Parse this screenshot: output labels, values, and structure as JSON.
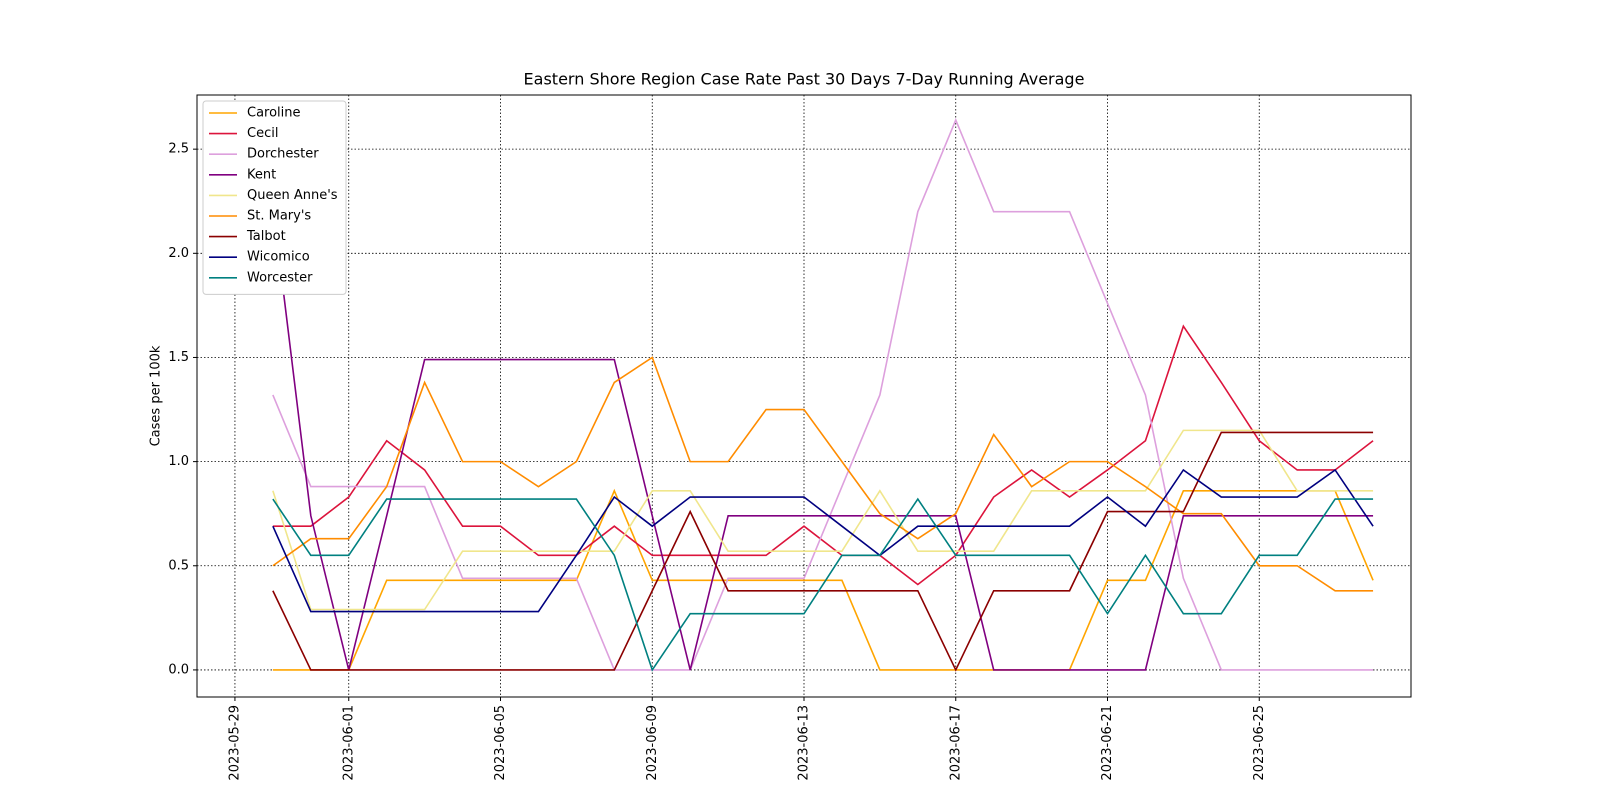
{
  "chart_data": {
    "type": "line",
    "title": "Eastern Shore Region Case Rate  Past 30 Days 7-Day Running Average",
    "y_label": "Cases per 100k",
    "x": [
      "2023-05-30",
      "2023-05-31",
      "2023-06-01",
      "2023-06-02",
      "2023-06-03",
      "2023-06-04",
      "2023-06-05",
      "2023-06-06",
      "2023-06-07",
      "2023-06-08",
      "2023-06-09",
      "2023-06-10",
      "2023-06-11",
      "2023-06-12",
      "2023-06-13",
      "2023-06-14",
      "2023-06-15",
      "2023-06-16",
      "2023-06-17",
      "2023-06-18",
      "2023-06-19",
      "2023-06-20",
      "2023-06-21",
      "2023-06-22",
      "2023-06-23",
      "2023-06-24",
      "2023-06-25",
      "2023-06-26",
      "2023-06-27",
      "2023-06-28"
    ],
    "xlim": [
      "2023-05-28",
      "2023-06-29"
    ],
    "xticks": [
      "2023-05-29",
      "2023-06-01",
      "2023-06-05",
      "2023-06-09",
      "2023-06-13",
      "2023-06-17",
      "2023-06-21",
      "2023-06-25"
    ],
    "ylim": [
      -0.13,
      2.76
    ],
    "yticks": [
      {
        "value": 0,
        "label": "0.0"
      },
      {
        "value": 0.5,
        "label": "0.5"
      },
      {
        "value": 1,
        "label": "1.0"
      },
      {
        "value": 1.5,
        "label": "1.5"
      },
      {
        "value": 2,
        "label": "2.0"
      },
      {
        "value": 2.5,
        "label": "2.5"
      }
    ],
    "grid": true,
    "legend": "upper-left",
    "series": [
      {
        "name": "Caroline",
        "color": "#ffa500",
        "values": [
          0,
          0,
          0,
          0.43,
          0.43,
          0.43,
          0.43,
          0.43,
          0.43,
          0.86,
          0.43,
          0.43,
          0.43,
          0.43,
          0.43,
          0.43,
          0,
          0,
          0,
          0,
          0,
          0,
          0.43,
          0.43,
          0.86,
          0.86,
          0.86,
          0.86,
          0.86,
          0.43
        ]
      },
      {
        "name": "Cecil",
        "color": "#dc143c",
        "values": [
          0.69,
          0.69,
          0.83,
          1.1,
          0.96,
          0.69,
          0.69,
          0.55,
          0.55,
          0.69,
          0.55,
          0.55,
          0.55,
          0.55,
          0.69,
          0.55,
          0.55,
          0.41,
          0.55,
          0.83,
          0.96,
          0.83,
          0.96,
          1.1,
          1.65,
          1.38,
          1.1,
          0.96,
          0.96,
          1.1
        ]
      },
      {
        "name": "Dorchester",
        "color": "#dda0dd",
        "values": [
          1.32,
          0.88,
          0.88,
          0.88,
          0.88,
          0.44,
          0.44,
          0.44,
          0.44,
          0,
          0,
          0,
          0.44,
          0.44,
          0.44,
          0.88,
          1.32,
          2.2,
          2.64,
          2.2,
          2.2,
          2.2,
          1.76,
          1.32,
          0.44,
          0,
          0,
          0,
          0,
          0
        ]
      },
      {
        "name": "Kent",
        "color": "#800080",
        "values": [
          2.23,
          0.74,
          0,
          0.74,
          1.49,
          1.49,
          1.49,
          1.49,
          1.49,
          1.49,
          0.74,
          0,
          0.74,
          0.74,
          0.74,
          0.74,
          0.74,
          0.74,
          0.74,
          0,
          0,
          0,
          0,
          0,
          0.74,
          0.74,
          0.74,
          0.74,
          0.74,
          0.74
        ]
      },
      {
        "name": "Queen Anne's",
        "color": "#f0e68c",
        "values": [
          0.86,
          0.29,
          0.29,
          0.29,
          0.29,
          0.57,
          0.57,
          0.57,
          0.57,
          0.57,
          0.86,
          0.86,
          0.57,
          0.57,
          0.57,
          0.57,
          0.86,
          0.57,
          0.57,
          0.57,
          0.86,
          0.86,
          0.86,
          0.86,
          1.15,
          1.15,
          1.15,
          0.86,
          0.86,
          0.86
        ]
      },
      {
        "name": "St. Mary's",
        "color": "#ff8c00",
        "values": [
          0.5,
          0.63,
          0.63,
          0.88,
          1.38,
          1.0,
          1.0,
          0.88,
          1.0,
          1.38,
          1.5,
          1.0,
          1.0,
          1.25,
          1.25,
          1.0,
          0.75,
          0.63,
          0.75,
          1.13,
          0.88,
          1.0,
          1.0,
          0.88,
          0.75,
          0.75,
          0.5,
          0.5,
          0.38,
          0.38
        ]
      },
      {
        "name": "Talbot",
        "color": "#8b0000",
        "values": [
          0.38,
          0,
          0,
          0,
          0,
          0,
          0,
          0,
          0,
          0,
          0.38,
          0.76,
          0.38,
          0.38,
          0.38,
          0.38,
          0.38,
          0.38,
          0,
          0.38,
          0.38,
          0.38,
          0.76,
          0.76,
          0.76,
          1.14,
          1.14,
          1.14,
          1.14,
          1.14
        ]
      },
      {
        "name": "Wicomico",
        "color": "#000080",
        "values": [
          0.69,
          0.28,
          0.28,
          0.28,
          0.28,
          0.28,
          0.28,
          0.28,
          0.55,
          0.83,
          0.69,
          0.83,
          0.83,
          0.83,
          0.83,
          0.69,
          0.55,
          0.69,
          0.69,
          0.69,
          0.69,
          0.69,
          0.83,
          0.69,
          0.96,
          0.83,
          0.83,
          0.83,
          0.96,
          0.69
        ]
      },
      {
        "name": "Worcester",
        "color": "#008080",
        "values": [
          0.82,
          0.55,
          0.55,
          0.82,
          0.82,
          0.82,
          0.82,
          0.82,
          0.82,
          0.55,
          0,
          0.27,
          0.27,
          0.27,
          0.27,
          0.55,
          0.55,
          0.82,
          0.55,
          0.55,
          0.55,
          0.55,
          0.27,
          0.55,
          0.27,
          0.27,
          0.55,
          0.55,
          0.82,
          0.82
        ]
      }
    ]
  }
}
